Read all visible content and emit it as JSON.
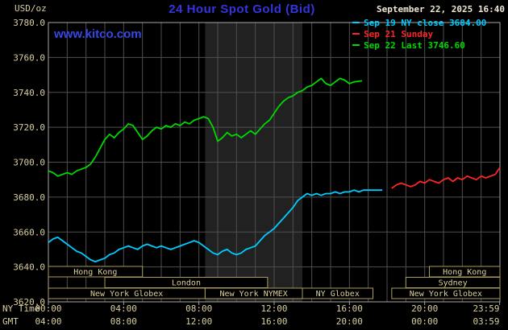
{
  "header": {
    "units": "USD/oz",
    "title": "24 Hour Spot Gold (Bid)",
    "datetime": "September 22, 2025 16:40",
    "watermark": "www.kitco.com"
  },
  "legend": [
    {
      "label": "Sep 19 NY close 3684.00",
      "color": "#00ccff"
    },
    {
      "label": "Sep 21 Sunday",
      "color": "#ff2525"
    },
    {
      "label": "Sep 22 Last 3746.60",
      "color": "#00d900"
    }
  ],
  "axes": {
    "ny_time_label": "NY Time",
    "gmt_label": "GMT",
    "y_tick_labels": [
      "3780.0",
      "3760.0",
      "3740.0",
      "3720.0",
      "3700.0",
      "3680.0",
      "3660.0",
      "3640.0",
      "3620.0"
    ],
    "x_hours": [
      0,
      4,
      8,
      12,
      16,
      20,
      23.983
    ],
    "x_ny_labels": [
      "00:00",
      "04:00",
      "08:00",
      "12:00",
      "16:00",
      "20:00",
      "23:59"
    ],
    "x_gmt_labels": [
      "04:00",
      "08:00",
      "12:00",
      "16:00",
      "20:00",
      "00:00",
      "03:59"
    ]
  },
  "sessions": [
    {
      "label": "Hong Kong",
      "row": 0,
      "start": 0,
      "end": 5.0
    },
    {
      "label": "Hong Kong",
      "row": 0,
      "start": 20.25,
      "end": 24
    },
    {
      "label": "London",
      "row": 1,
      "start": 3.0,
      "end": 11.65
    },
    {
      "label": "Sydney",
      "row": 1,
      "start": 19.0,
      "end": 24
    },
    {
      "label": "New York Globex",
      "row": 2,
      "start": 0,
      "end": 8.33
    },
    {
      "label": "New York NYMEX",
      "row": 2,
      "start": 8.33,
      "end": 13.5
    },
    {
      "label": "NY Globex",
      "row": 2,
      "start": 13.5,
      "end": 17.25
    },
    {
      "label": "New York Globex",
      "row": 2,
      "start": 18.25,
      "end": 24
    }
  ],
  "chart_data": {
    "type": "line",
    "title": "24 Hour Spot Gold (Bid)",
    "xlabel": "NY Time",
    "ylabel": "USD/oz",
    "ylim": [
      3620,
      3780
    ],
    "xlim_hours": [
      0,
      24
    ],
    "y_tick_step": 20,
    "grid": true,
    "legend_position": "top-right",
    "band_hours": [
      8.33,
      13.5
    ],
    "band_color": "#212121",
    "series": [
      {
        "id": "sep19-ny-close",
        "name": "Sep 19 NY close",
        "close_value": 3684.0,
        "color": "#00ccff",
        "points": [
          [
            0,
            3654
          ],
          [
            0.25,
            3656
          ],
          [
            0.5,
            3657
          ],
          [
            0.75,
            3655
          ],
          [
            1,
            3653
          ],
          [
            1.25,
            3651
          ],
          [
            1.5,
            3649
          ],
          [
            1.75,
            3648
          ],
          [
            2,
            3646
          ],
          [
            2.25,
            3644
          ],
          [
            2.5,
            3643
          ],
          [
            2.75,
            3644
          ],
          [
            3,
            3645
          ],
          [
            3.25,
            3647
          ],
          [
            3.5,
            3648
          ],
          [
            3.75,
            3650
          ],
          [
            4,
            3651
          ],
          [
            4.25,
            3652
          ],
          [
            4.5,
            3651
          ],
          [
            4.75,
            3650
          ],
          [
            5,
            3652
          ],
          [
            5.25,
            3653
          ],
          [
            5.5,
            3652
          ],
          [
            5.75,
            3651
          ],
          [
            6,
            3652
          ],
          [
            6.25,
            3651
          ],
          [
            6.5,
            3650
          ],
          [
            6.75,
            3651
          ],
          [
            7,
            3652
          ],
          [
            7.25,
            3653
          ],
          [
            7.5,
            3654
          ],
          [
            7.75,
            3655
          ],
          [
            8,
            3654
          ],
          [
            8.25,
            3652
          ],
          [
            8.5,
            3650
          ],
          [
            8.75,
            3648
          ],
          [
            9,
            3647
          ],
          [
            9.25,
            3649
          ],
          [
            9.5,
            3650
          ],
          [
            9.75,
            3648
          ],
          [
            10,
            3647
          ],
          [
            10.25,
            3648
          ],
          [
            10.5,
            3650
          ],
          [
            10.75,
            3651
          ],
          [
            11,
            3652
          ],
          [
            11.25,
            3655
          ],
          [
            11.5,
            3658
          ],
          [
            11.75,
            3660
          ],
          [
            12,
            3662
          ],
          [
            12.25,
            3665
          ],
          [
            12.5,
            3668
          ],
          [
            12.75,
            3671
          ],
          [
            13,
            3674
          ],
          [
            13.25,
            3678
          ],
          [
            13.5,
            3680
          ],
          [
            13.75,
            3682
          ],
          [
            14,
            3681
          ],
          [
            14.25,
            3682
          ],
          [
            14.5,
            3681
          ],
          [
            14.75,
            3682
          ],
          [
            15,
            3682
          ],
          [
            15.25,
            3683
          ],
          [
            15.5,
            3682
          ],
          [
            15.75,
            3683
          ],
          [
            16,
            3683
          ],
          [
            16.25,
            3684
          ],
          [
            16.5,
            3683
          ],
          [
            16.75,
            3684
          ],
          [
            17,
            3684
          ],
          [
            17.25,
            3684
          ],
          [
            17.5,
            3684
          ],
          [
            17.75,
            3684
          ]
        ]
      },
      {
        "id": "sep21-sunday",
        "name": "Sep 21 Sunday",
        "color": "#ff2525",
        "points": [
          [
            18.25,
            3685
          ],
          [
            18.5,
            3687
          ],
          [
            18.75,
            3688
          ],
          [
            19,
            3687
          ],
          [
            19.25,
            3686
          ],
          [
            19.5,
            3687
          ],
          [
            19.75,
            3689
          ],
          [
            20,
            3688
          ],
          [
            20.25,
            3690
          ],
          [
            20.5,
            3689
          ],
          [
            20.75,
            3688
          ],
          [
            21,
            3690
          ],
          [
            21.25,
            3691
          ],
          [
            21.5,
            3689
          ],
          [
            21.75,
            3691
          ],
          [
            22,
            3690
          ],
          [
            22.25,
            3692
          ],
          [
            22.5,
            3691
          ],
          [
            22.75,
            3690
          ],
          [
            23,
            3692
          ],
          [
            23.25,
            3691
          ],
          [
            23.5,
            3692
          ],
          [
            23.75,
            3693
          ],
          [
            24,
            3697
          ]
        ]
      },
      {
        "id": "sep22-last",
        "name": "Sep 22",
        "last_value": 3746.6,
        "color": "#00d900",
        "points": [
          [
            0,
            3695
          ],
          [
            0.25,
            3694
          ],
          [
            0.5,
            3692
          ],
          [
            0.75,
            3693
          ],
          [
            1,
            3694
          ],
          [
            1.25,
            3693
          ],
          [
            1.5,
            3695
          ],
          [
            1.75,
            3696
          ],
          [
            2,
            3697
          ],
          [
            2.25,
            3699
          ],
          [
            2.5,
            3703
          ],
          [
            2.75,
            3708
          ],
          [
            3,
            3713
          ],
          [
            3.25,
            3716
          ],
          [
            3.5,
            3714
          ],
          [
            3.75,
            3717
          ],
          [
            4,
            3719
          ],
          [
            4.25,
            3722
          ],
          [
            4.5,
            3721
          ],
          [
            4.75,
            3717
          ],
          [
            5,
            3713
          ],
          [
            5.25,
            3715
          ],
          [
            5.5,
            3718
          ],
          [
            5.75,
            3720
          ],
          [
            6,
            3719
          ],
          [
            6.25,
            3721
          ],
          [
            6.5,
            3720
          ],
          [
            6.75,
            3722
          ],
          [
            7,
            3721
          ],
          [
            7.25,
            3723
          ],
          [
            7.5,
            3722
          ],
          [
            7.75,
            3724
          ],
          [
            8,
            3725
          ],
          [
            8.25,
            3726
          ],
          [
            8.5,
            3725
          ],
          [
            8.75,
            3720
          ],
          [
            9,
            3712
          ],
          [
            9.25,
            3714
          ],
          [
            9.5,
            3717
          ],
          [
            9.75,
            3715
          ],
          [
            10,
            3716
          ],
          [
            10.25,
            3714
          ],
          [
            10.5,
            3716
          ],
          [
            10.75,
            3718
          ],
          [
            11,
            3716
          ],
          [
            11.25,
            3719
          ],
          [
            11.5,
            3722
          ],
          [
            11.75,
            3724
          ],
          [
            12,
            3728
          ],
          [
            12.25,
            3732
          ],
          [
            12.5,
            3735
          ],
          [
            12.75,
            3737
          ],
          [
            13,
            3738
          ],
          [
            13.25,
            3740
          ],
          [
            13.5,
            3741
          ],
          [
            13.75,
            3743
          ],
          [
            14,
            3744
          ],
          [
            14.25,
            3746
          ],
          [
            14.5,
            3748
          ],
          [
            14.75,
            3745
          ],
          [
            15,
            3744
          ],
          [
            15.25,
            3746
          ],
          [
            15.5,
            3748
          ],
          [
            15.75,
            3747
          ],
          [
            16,
            3745
          ],
          [
            16.25,
            3746
          ],
          [
            16.67,
            3746.6
          ]
        ]
      }
    ]
  }
}
